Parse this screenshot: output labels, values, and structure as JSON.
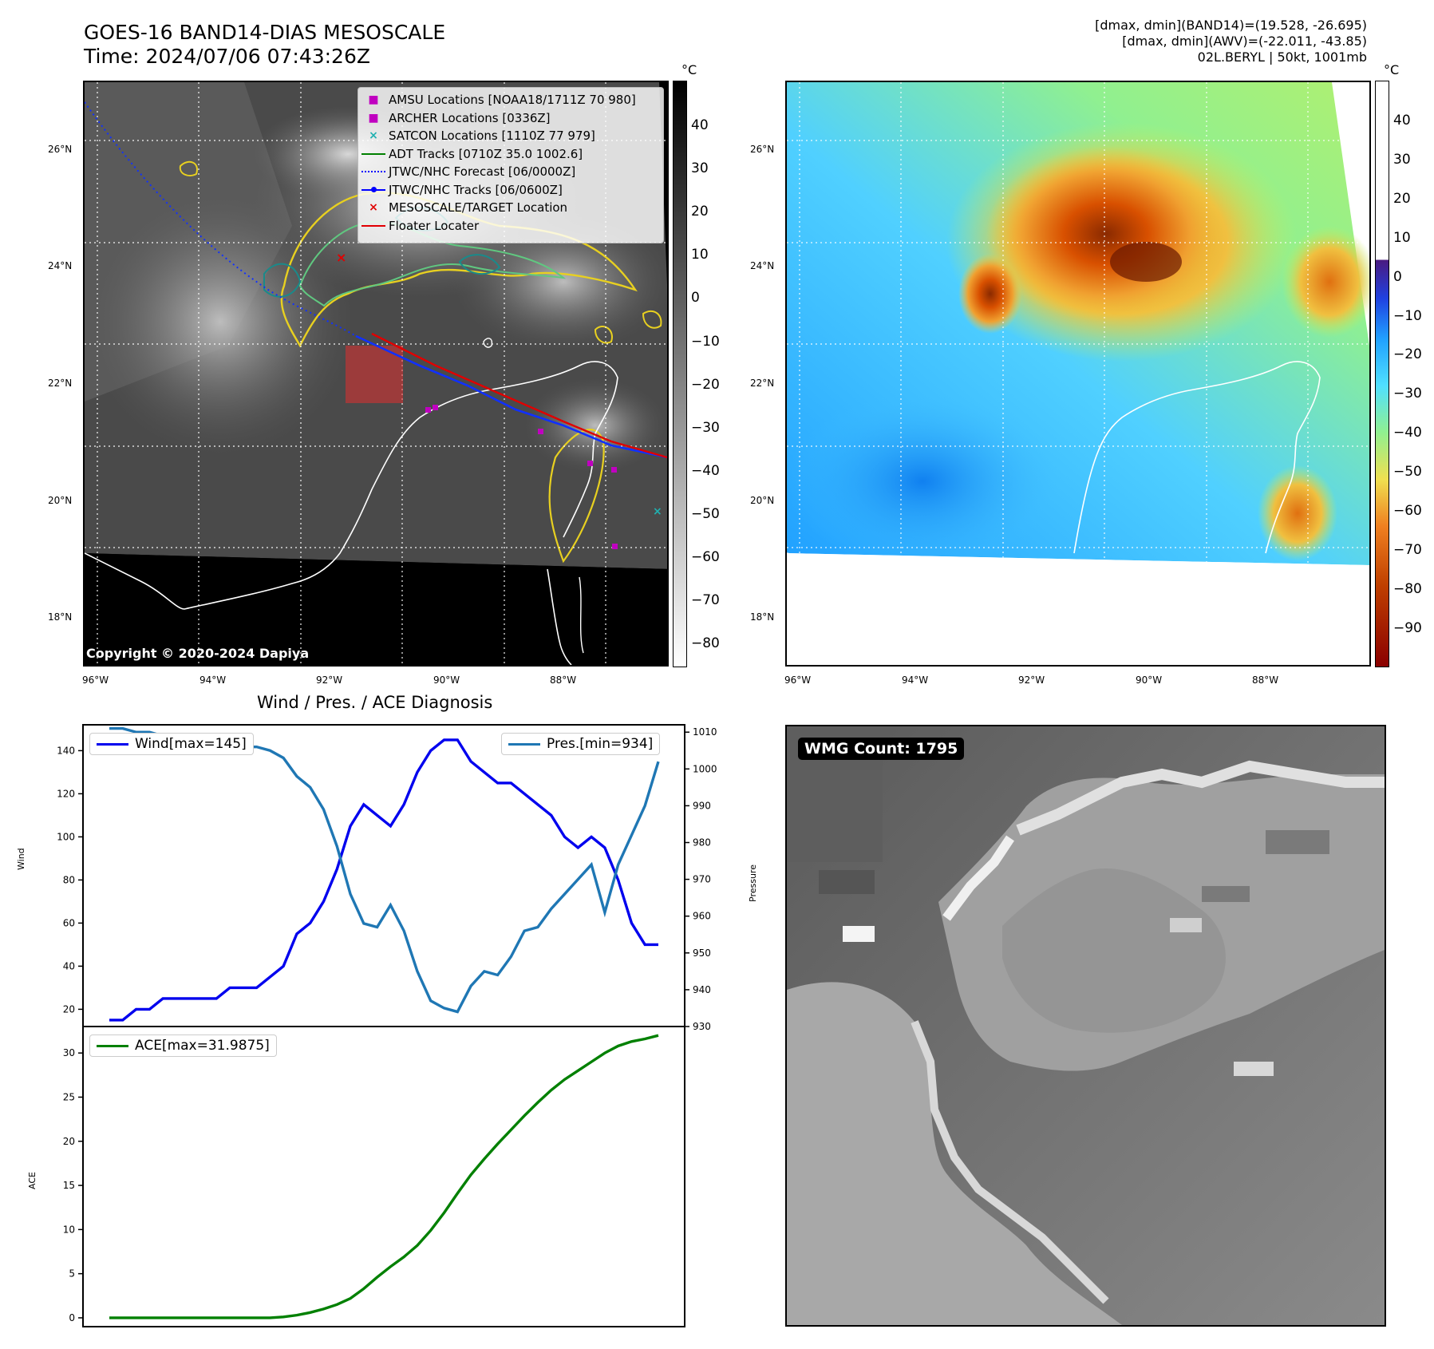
{
  "header": {
    "title_line1": "GOES-16 BAND14-DIAS MESOSCALE",
    "title_line2": "Time: 2024/07/06 07:43:26Z",
    "info_line1": "[dmax, dmin](BAND14)=(19.528, -26.695)",
    "info_line2": "[dmax, dmin](AWV)=(-22.011, -43.85)",
    "info_line3": "02L.BERYL | 50kt, 1001mb"
  },
  "maps": {
    "lat_labels": [
      "26°N",
      "24°N",
      "22°N",
      "20°N",
      "18°N"
    ],
    "lon_labels": [
      "96°W",
      "94°W",
      "92°W",
      "90°W",
      "88°W"
    ],
    "copyright": "Copyright © 2020-2024 Dapiya"
  },
  "legend": {
    "items": [
      {
        "label": "AMSU Locations [NOAA18/1711Z 70 980]",
        "color": "#c000c0",
        "symbol": "■"
      },
      {
        "label": "ARCHER Locations [0336Z]",
        "color": "#c000c0",
        "symbol": "■"
      },
      {
        "label": "SATCON Locations [1110Z 77 979]",
        "color": "#20b0b0",
        "symbol": "×"
      },
      {
        "label": "ADT Tracks [0710Z 35.0 1002.6]",
        "color": "#008000",
        "symbol": "line"
      },
      {
        "label": "JTWC/NHC Forecast [06/0000Z]",
        "color": "#0000ff",
        "symbol": "dotted"
      },
      {
        "label": "JTWC/NHC Tracks [06/0600Z]",
        "color": "#0000ff",
        "symbol": "dotline"
      },
      {
        "label": "MESOSCALE/TARGET Location",
        "color": "#e00000",
        "symbol": "×"
      },
      {
        "label": "Floater Locater",
        "color": "#e00000",
        "symbol": "line"
      }
    ]
  },
  "colorbar_left": {
    "unit": "°C",
    "ticks": [
      "40",
      "30",
      "20",
      "10",
      "0",
      "−10",
      "−20",
      "−30",
      "−40",
      "−50",
      "−60",
      "−70",
      "−80"
    ]
  },
  "colorbar_right": {
    "unit": "°C",
    "ticks": [
      "40",
      "30",
      "20",
      "10",
      "0",
      "−10",
      "−20",
      "−30",
      "−40",
      "−50",
      "−60",
      "−70",
      "−80",
      "−90"
    ]
  },
  "wmg": {
    "badge": "WMG Count: 1795"
  },
  "colors": {
    "wind": "#0000ee",
    "pressure": "#1f77b4",
    "ace": "#008000"
  },
  "chart_data": [
    {
      "type": "line",
      "title": "Wind / Pres. / ACE Diagnosis",
      "ylabel": "Wind",
      "y2label": "Pressure",
      "ylim": [
        12,
        152
      ],
      "y2lim": [
        930,
        1012
      ],
      "yticks": [
        20,
        40,
        60,
        80,
        100,
        120,
        140
      ],
      "y2ticks": [
        930,
        940,
        950,
        960,
        970,
        980,
        990,
        1000,
        1010
      ],
      "series": [
        {
          "name": "Wind[max=145]",
          "values": [
            15,
            15,
            20,
            20,
            25,
            25,
            25,
            25,
            25,
            30,
            30,
            30,
            35,
            40,
            55,
            60,
            70,
            85,
            105,
            115,
            110,
            105,
            115,
            130,
            140,
            145,
            145,
            135,
            130,
            125,
            125,
            120,
            115,
            110,
            100,
            95,
            100,
            95,
            80,
            60,
            50,
            50
          ]
        },
        {
          "name": "Pres.[min=934]",
          "axis": "right",
          "values": [
            1011,
            1011,
            1010,
            1010,
            1009,
            1009,
            1008,
            1008,
            1007,
            1007,
            1006,
            1006,
            1005,
            1003,
            998,
            995,
            989,
            979,
            966,
            958,
            957,
            963,
            956,
            945,
            937,
            935,
            934,
            941,
            945,
            944,
            949,
            956,
            957,
            962,
            966,
            970,
            974,
            961,
            974,
            982,
            990,
            1002
          ]
        }
      ]
    },
    {
      "type": "line",
      "ylabel": "ACE",
      "ylim": [
        -1,
        33
      ],
      "yticks": [
        0,
        5,
        10,
        15,
        20,
        25,
        30
      ],
      "series": [
        {
          "name": "ACE[max=31.9875]",
          "values": [
            0,
            0,
            0,
            0,
            0,
            0,
            0,
            0,
            0,
            0,
            0,
            0,
            0,
            0.1,
            0.3,
            0.6,
            1.0,
            1.5,
            2.2,
            3.3,
            4.6,
            5.8,
            6.9,
            8.2,
            9.9,
            11.9,
            14.1,
            16.2,
            18.0,
            19.7,
            21.3,
            22.9,
            24.4,
            25.8,
            27.0,
            28.0,
            29.0,
            30.0,
            30.8,
            31.3,
            31.6,
            31.9875
          ]
        }
      ]
    }
  ]
}
